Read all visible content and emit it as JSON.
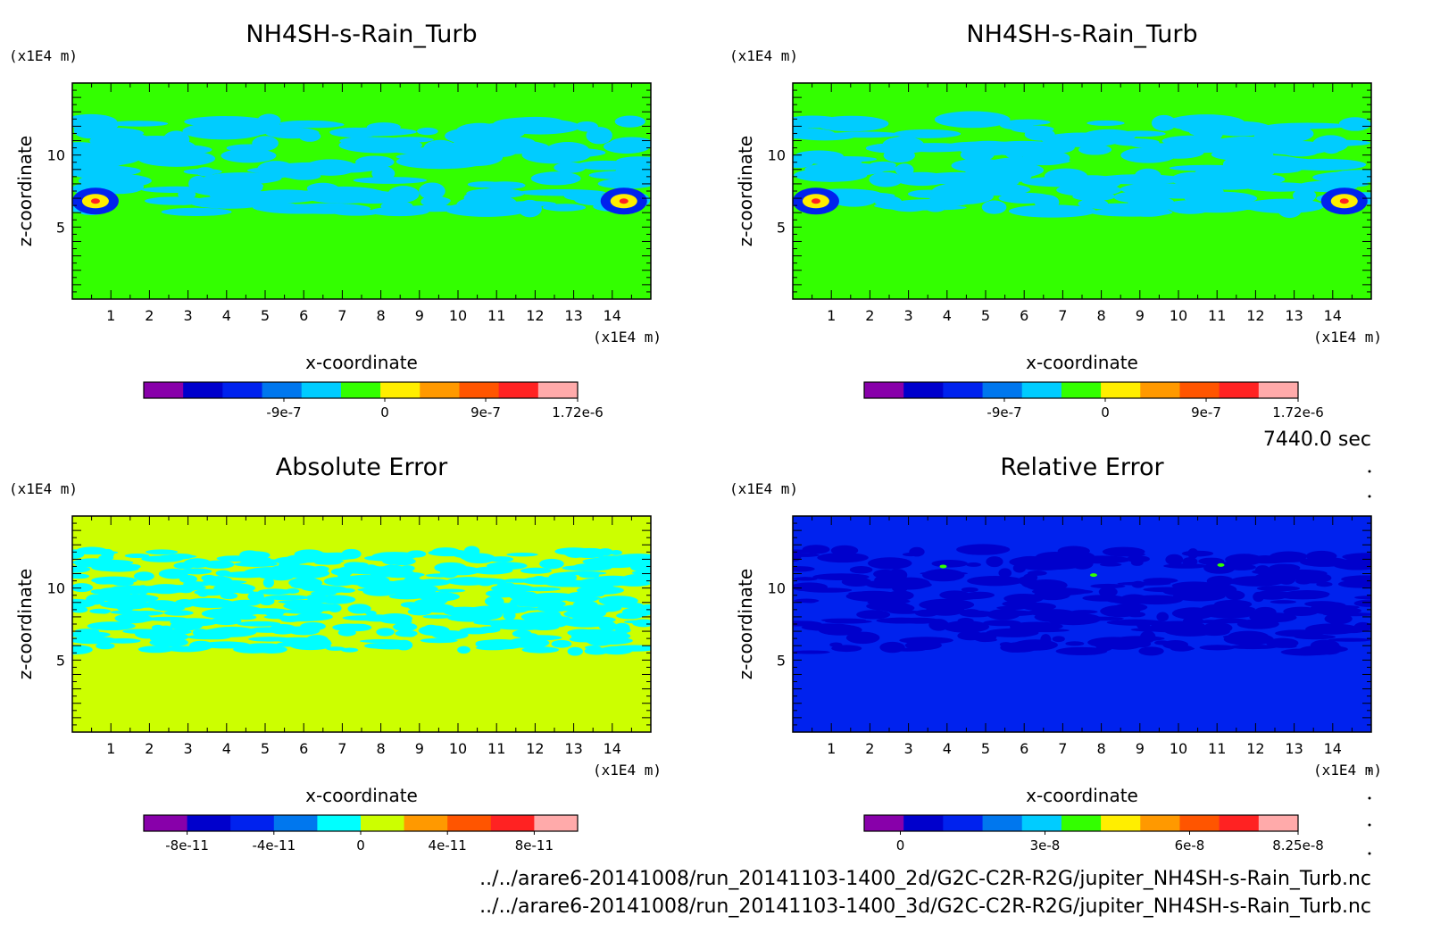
{
  "time_label": "7440.0 sec",
  "footer": [
    "../../arare6-20141008/run_20141103-1400_2d/G2C-C2R-R2G/jupiter_NH4SH-s-Rain_Turb.nc",
    "../../arare6-20141008/run_20141103-1400_3d/G2C-C2R-R2G/jupiter_NH4SH-s-Rain_Turb.nc"
  ],
  "chart_data": [
    {
      "type": "heatmap",
      "title": "NH4SH-s-Rain_Turb",
      "xlabel": "x-coordinate",
      "ylabel": "z-coordinate",
      "x_unit": "(x1E4 m)",
      "y_unit": "(x1E4 m)",
      "xlim": [
        0,
        15
      ],
      "ylim": [
        0,
        15
      ],
      "x_ticks": [
        1,
        2,
        3,
        4,
        5,
        6,
        7,
        8,
        9,
        10,
        11,
        12,
        13,
        14
      ],
      "y_ticks": [
        5,
        10
      ],
      "background_color": "#33ff00",
      "pattern_color": "#00ccff",
      "pattern": "band",
      "colorbar": {
        "colors": [
          "#8800aa",
          "#0000cc",
          "#0022ee",
          "#0077ee",
          "#00ccff",
          "#33ff00",
          "#ffee00",
          "#ff9900",
          "#ff5500",
          "#ff2222",
          "#ffaaaa"
        ],
        "labels": [
          {
            "text": "-9e-7",
            "pos": -9e-07
          },
          {
            "text": "0",
            "pos": 0
          },
          {
            "text": "9e-7",
            "pos": 9e-07
          },
          {
            "text": "1.72e-6",
            "pos": 1.72e-06
          }
        ],
        "min": -2.15e-06,
        "max": 1.72e-06
      }
    },
    {
      "type": "heatmap",
      "title": "NH4SH-s-Rain_Turb",
      "xlabel": "x-coordinate",
      "ylabel": "z-coordinate",
      "x_unit": "(x1E4 m)",
      "y_unit": "(x1E4 m)",
      "xlim": [
        0,
        15
      ],
      "ylim": [
        0,
        15
      ],
      "x_ticks": [
        1,
        2,
        3,
        4,
        5,
        6,
        7,
        8,
        9,
        10,
        11,
        12,
        13,
        14
      ],
      "y_ticks": [
        5,
        10
      ],
      "background_color": "#33ff00",
      "pattern_color": "#00ccff",
      "pattern": "band",
      "colorbar": {
        "colors": [
          "#8800aa",
          "#0000cc",
          "#0022ee",
          "#0077ee",
          "#00ccff",
          "#33ff00",
          "#ffee00",
          "#ff9900",
          "#ff5500",
          "#ff2222",
          "#ffaaaa"
        ],
        "labels": [
          {
            "text": "-9e-7",
            "pos": -9e-07
          },
          {
            "text": "0",
            "pos": 0
          },
          {
            "text": "9e-7",
            "pos": 9e-07
          },
          {
            "text": "1.72e-6",
            "pos": 1.72e-06
          }
        ],
        "min": -2.15e-06,
        "max": 1.72e-06
      }
    },
    {
      "type": "heatmap",
      "title": "Absolute Error",
      "xlabel": "x-coordinate",
      "ylabel": "z-coordinate",
      "x_unit": "(x1E4 m)",
      "y_unit": "(x1E4 m)",
      "xlim": [
        0,
        15
      ],
      "ylim": [
        0,
        15
      ],
      "x_ticks": [
        1,
        2,
        3,
        4,
        5,
        6,
        7,
        8,
        9,
        10,
        11,
        12,
        13,
        14
      ],
      "y_ticks": [
        5,
        10
      ],
      "background_color": "#ccff00",
      "pattern_color": "#00ffff",
      "pattern": "noise",
      "colorbar": {
        "colors": [
          "#8800aa",
          "#0000cc",
          "#0022ee",
          "#0077ee",
          "#00ffff",
          "#ccff00",
          "#ff9900",
          "#ff5500",
          "#ff2222",
          "#ffaaaa"
        ],
        "labels": [
          {
            "text": "-8e-11",
            "pos": -8e-11
          },
          {
            "text": "-4e-11",
            "pos": -4e-11
          },
          {
            "text": "0",
            "pos": 0
          },
          {
            "text": "4e-11",
            "pos": 4e-11
          },
          {
            "text": "8e-11",
            "pos": 8e-11
          }
        ],
        "min": -1e-10,
        "max": 1e-10
      }
    },
    {
      "type": "heatmap",
      "title": "Relative Error",
      "xlabel": "x-coordinate",
      "ylabel": "z-coordinate",
      "x_unit": "(x1E4 m)",
      "y_unit": "(x1E4 m)",
      "xlim": [
        0,
        15
      ],
      "ylim": [
        0,
        15
      ],
      "x_ticks": [
        1,
        2,
        3,
        4,
        5,
        6,
        7,
        8,
        9,
        10,
        11,
        12,
        13,
        14
      ],
      "y_ticks": [
        5,
        10
      ],
      "background_color": "#0022ee",
      "pattern_color": "#0000cc",
      "pattern": "sparse",
      "colorbar": {
        "colors": [
          "#8800aa",
          "#0000cc",
          "#0022ee",
          "#0077ee",
          "#00ccff",
          "#33ff00",
          "#ffee00",
          "#ff9900",
          "#ff5500",
          "#ff2222",
          "#ffaaaa"
        ],
        "labels": [
          {
            "text": "0",
            "pos": 0
          },
          {
            "text": "3e-8",
            "pos": 3e-08
          },
          {
            "text": "6e-8",
            "pos": 6e-08
          },
          {
            "text": "8.25e-8",
            "pos": 8.25e-08
          }
        ],
        "min": -7.5e-09,
        "max": 8.25e-08
      }
    }
  ]
}
